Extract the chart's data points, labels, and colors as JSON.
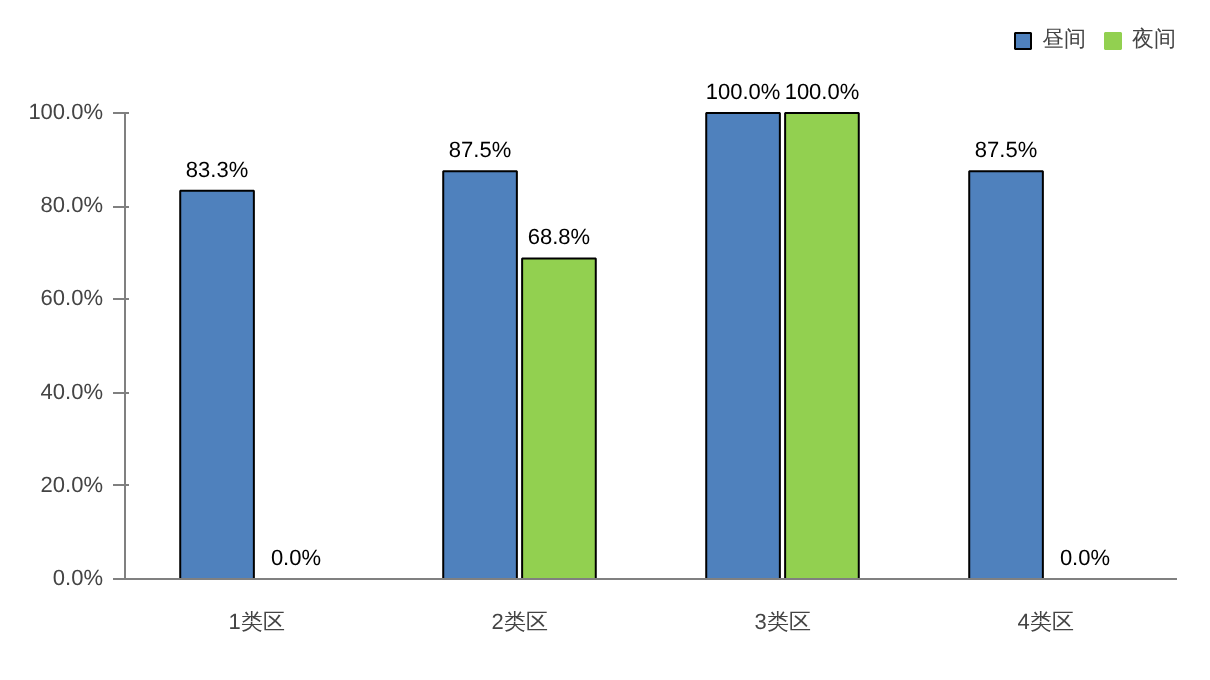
{
  "chart_data": {
    "type": "bar",
    "categories": [
      "1类区",
      "2类区",
      "3类区",
      "4类区"
    ],
    "series": [
      {
        "name": "昼间",
        "color": "#4f81bd",
        "values": [
          83.3,
          87.5,
          100.0,
          87.5
        ],
        "value_labels": [
          "83.3%",
          "87.5%",
          "100.0%",
          "87.5%"
        ]
      },
      {
        "name": "夜间",
        "color": "#92d050",
        "values": [
          0.0,
          68.8,
          100.0,
          0.0
        ],
        "value_labels": [
          "0.0%",
          "68.8%",
          "100.0%",
          "0.0%"
        ]
      }
    ],
    "ylim": [
      0,
      100
    ],
    "yticks": [
      {
        "value": 0,
        "label": "0.0%"
      },
      {
        "value": 20,
        "label": "20.0%"
      },
      {
        "value": 40,
        "label": "40.0%"
      },
      {
        "value": 60,
        "label": "60.0%"
      },
      {
        "value": 80,
        "label": "80.0%"
      },
      {
        "value": 100,
        "label": "100.0%"
      }
    ],
    "grid": false,
    "legend": "top right"
  }
}
